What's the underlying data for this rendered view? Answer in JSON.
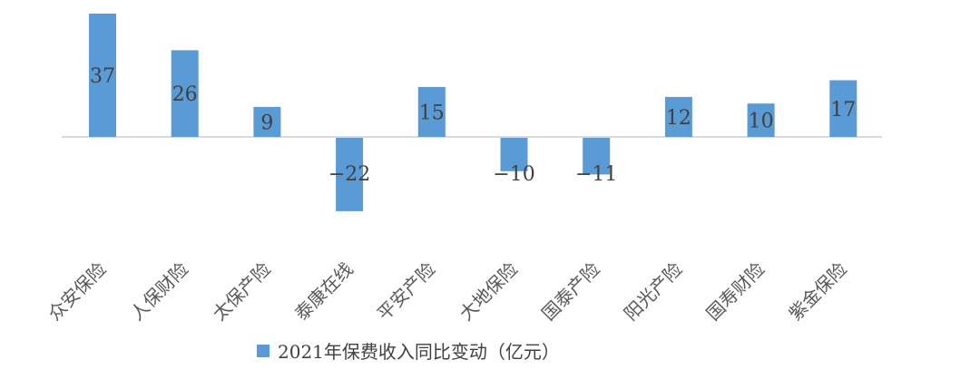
{
  "chart_data": {
    "type": "bar",
    "categories": [
      "众安保险",
      "人保财险",
      "太保产险",
      "泰康在线",
      "平安产险",
      "大地保险",
      "国泰产险",
      "阳光产险",
      "国寿财险",
      "紫金保险"
    ],
    "series": [
      {
        "name": "2021年保费收入同比变动（亿元）",
        "values": [
          37,
          26,
          9,
          -22,
          15,
          -10,
          -11,
          12,
          10,
          17
        ],
        "labels": [
          "37",
          "26",
          "9",
          "−22",
          "15",
          "−10",
          "−11",
          "12",
          "10",
          "17"
        ],
        "color": "#5b9bd5"
      }
    ],
    "title": "",
    "xlabel": "",
    "ylabel": "",
    "ylim": [
      -22,
      37
    ],
    "grid": false,
    "legend": "bottom",
    "axis_color": "#d9d9d9"
  }
}
